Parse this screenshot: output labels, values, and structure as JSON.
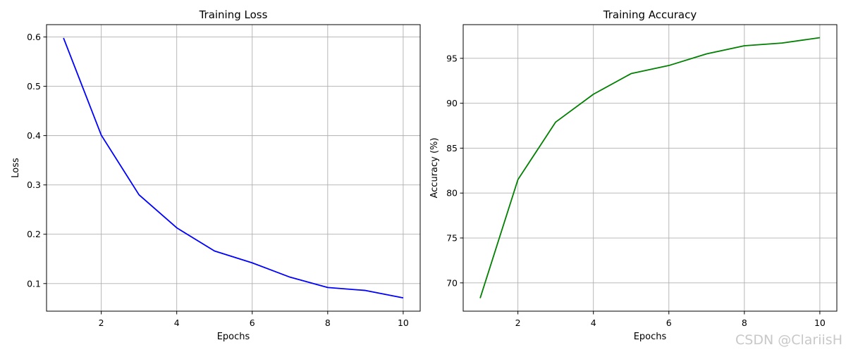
{
  "chart_data": [
    {
      "type": "line",
      "title": "Training Loss",
      "xlabel": "Epochs",
      "ylabel": "Loss",
      "x": [
        1,
        2,
        3,
        4,
        5,
        6,
        7,
        8,
        9,
        10
      ],
      "series": [
        {
          "color": "#0000ff",
          "values": [
            0.598,
            0.401,
            0.28,
            0.213,
            0.166,
            0.142,
            0.113,
            0.092,
            0.086,
            0.071
          ]
        }
      ],
      "xlim": [
        0.55,
        10.45
      ],
      "ylim": [
        0.044,
        0.625
      ],
      "xticks": [
        2,
        4,
        6,
        8,
        10
      ],
      "xtick_labels": [
        "2",
        "4",
        "6",
        "8",
        "10"
      ],
      "yticks": [
        0.1,
        0.2,
        0.3,
        0.4,
        0.5,
        0.6
      ],
      "ytick_labels": [
        "0.1",
        "0.2",
        "0.3",
        "0.4",
        "0.5",
        "0.6"
      ],
      "grid": true
    },
    {
      "type": "line",
      "title": "Training Accuracy",
      "xlabel": "Epochs",
      "ylabel": "Accuracy (%)",
      "x": [
        1,
        2,
        3,
        4,
        5,
        6,
        7,
        8,
        9,
        10
      ],
      "series": [
        {
          "color": "#008000",
          "values": [
            68.3,
            81.5,
            87.9,
            91.0,
            93.3,
            94.2,
            95.5,
            96.4,
            96.7,
            97.3
          ]
        }
      ],
      "xlim": [
        0.55,
        10.45
      ],
      "ylim": [
        66.85,
        98.75
      ],
      "xticks": [
        2,
        4,
        6,
        8,
        10
      ],
      "xtick_labels": [
        "2",
        "4",
        "6",
        "8",
        "10"
      ],
      "yticks": [
        70,
        75,
        80,
        85,
        90,
        95
      ],
      "ytick_labels": [
        "70",
        "75",
        "80",
        "85",
        "90",
        "95"
      ],
      "grid": true
    }
  ],
  "watermark": "CSDN @ClariisH"
}
